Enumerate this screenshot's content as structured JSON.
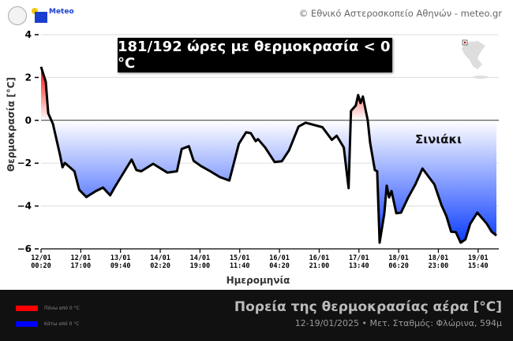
{
  "header": {
    "credit": "© Εθνικό Αστεροσκοπείο Αθηνών - meteo.gr",
    "logo_text": "Meteo"
  },
  "banner": "181/192 ώρες με θερμοκρασία < 0 °C",
  "station": "Σινιάκι",
  "footer": {
    "title": "Πορεία της θερμοκρασίας αέρα [°C]",
    "subtitle": "12-19/01/2025 • Μετ. Σταθμός: Φλώρινα, 594μ",
    "legend": [
      {
        "label": "Πάνω από 0 °C",
        "color": "#ff0000"
      },
      {
        "label": "Κάτω από 0 °C",
        "color": "#0000ff"
      }
    ]
  },
  "chart_data": {
    "type": "area",
    "xlabel": "Ημερομηνία",
    "ylabel": "Θερμοκρασία [°C]",
    "ylim": [
      -6,
      4
    ],
    "yticks": [
      4,
      2,
      0,
      -2,
      -4,
      -6
    ],
    "xlim": [
      "2025-01-12T00:20",
      "2025-01-20T00:20"
    ],
    "xticks": [
      {
        "x": "2025-01-12T00:20",
        "label": [
          "12/01",
          "00:20"
        ]
      },
      {
        "x": "2025-01-12T17:00",
        "label": [
          "12/01",
          "17:00"
        ]
      },
      {
        "x": "2025-01-13T09:40",
        "label": [
          "13/01",
          "09:40"
        ]
      },
      {
        "x": "2025-01-14T02:20",
        "label": [
          "14/01",
          "02:20"
        ]
      },
      {
        "x": "2025-01-14T19:00",
        "label": [
          "14/01",
          "19:00"
        ]
      },
      {
        "x": "2025-01-15T11:40",
        "label": [
          "15/01",
          "11:40"
        ]
      },
      {
        "x": "2025-01-16T04:20",
        "label": [
          "16/01",
          "04:20"
        ]
      },
      {
        "x": "2025-01-16T21:00",
        "label": [
          "16/01",
          "21:00"
        ]
      },
      {
        "x": "2025-01-17T13:40",
        "label": [
          "17/01",
          "13:40"
        ]
      },
      {
        "x": "2025-01-18T06:20",
        "label": [
          "18/01",
          "06:20"
        ]
      },
      {
        "x": "2025-01-18T23:00",
        "label": [
          "18/01",
          "23:00"
        ]
      },
      {
        "x": "2025-01-19T15:40",
        "label": [
          "19/01",
          "15:40"
        ]
      }
    ],
    "grid": true,
    "colors": {
      "above": "#ff0000",
      "below": "#0033ff",
      "line": "#000000"
    },
    "series": [
      {
        "points": [
          [
            "2025-01-12T00:20",
            2.5
          ],
          [
            "2025-01-12T02:20",
            1.8
          ],
          [
            "2025-01-12T03:20",
            0.33
          ],
          [
            "2025-01-12T05:20",
            -0.17
          ],
          [
            "2025-01-12T08:20",
            -1.64
          ],
          [
            "2025-01-12T09:20",
            -2.19
          ],
          [
            "2025-01-12T10:20",
            -1.99
          ],
          [
            "2025-01-12T14:20",
            -2.38
          ],
          [
            "2025-01-12T16:20",
            -3.24
          ],
          [
            "2025-01-12T19:20",
            -3.58
          ],
          [
            "2025-01-12T23:20",
            -3.3
          ],
          [
            "2025-01-13T02:20",
            -3.14
          ],
          [
            "2025-01-13T05:20",
            -3.5
          ],
          [
            "2025-01-13T07:20",
            -3.11
          ],
          [
            "2025-01-13T12:20",
            -2.19
          ],
          [
            "2025-01-13T14:20",
            -1.83
          ],
          [
            "2025-01-13T16:20",
            -2.32
          ],
          [
            "2025-01-13T18:20",
            -2.38
          ],
          [
            "2025-01-13T23:20",
            -2.03
          ],
          [
            "2025-01-14T05:20",
            -2.44
          ],
          [
            "2025-01-14T09:20",
            -2.38
          ],
          [
            "2025-01-14T11:20",
            -1.34
          ],
          [
            "2025-01-14T14:20",
            -1.21
          ],
          [
            "2025-01-14T16:20",
            -1.89
          ],
          [
            "2025-01-14T19:20",
            -2.13
          ],
          [
            "2025-01-14T23:20",
            -2.38
          ],
          [
            "2025-01-15T03:20",
            -2.65
          ],
          [
            "2025-01-15T07:20",
            -2.81
          ],
          [
            "2025-01-15T11:20",
            -1.09
          ],
          [
            "2025-01-15T14:20",
            -0.56
          ],
          [
            "2025-01-15T16:20",
            -0.6
          ],
          [
            "2025-01-15T18:20",
            -0.97
          ],
          [
            "2025-01-15T19:20",
            -0.88
          ],
          [
            "2025-01-15T22:20",
            -1.27
          ],
          [
            "2025-01-16T02:20",
            -1.95
          ],
          [
            "2025-01-16T05:20",
            -1.91
          ],
          [
            "2025-01-16T08:20",
            -1.4
          ],
          [
            "2025-01-16T12:20",
            -0.29
          ],
          [
            "2025-01-16T15:20",
            -0.11
          ],
          [
            "2025-01-16T22:20",
            -0.32
          ],
          [
            "2025-01-17T02:20",
            -0.91
          ],
          [
            "2025-01-17T04:20",
            -0.72
          ],
          [
            "2025-01-17T07:20",
            -1.27
          ],
          [
            "2025-01-17T09:20",
            -3.17
          ],
          [
            "2025-01-17T10:20",
            0.44
          ],
          [
            "2025-01-17T12:20",
            0.69
          ],
          [
            "2025-01-17T13:20",
            1.18
          ],
          [
            "2025-01-17T14:20",
            0.81
          ],
          [
            "2025-01-17T15:20",
            1.11
          ],
          [
            "2025-01-17T17:20",
            0.01
          ],
          [
            "2025-01-17T18:20",
            -1.03
          ],
          [
            "2025-01-17T20:20",
            -2.32
          ],
          [
            "2025-01-17T21:20",
            -2.38
          ],
          [
            "2025-01-17T22:20",
            -5.71
          ],
          [
            "2025-01-18T00:20",
            -4.34
          ],
          [
            "2025-01-18T01:20",
            -3.05
          ],
          [
            "2025-01-18T02:20",
            -3.6
          ],
          [
            "2025-01-18T03:20",
            -3.3
          ],
          [
            "2025-01-18T05:20",
            -4.34
          ],
          [
            "2025-01-18T07:20",
            -4.31
          ],
          [
            "2025-01-18T10:20",
            -3.6
          ],
          [
            "2025-01-18T13:20",
            -2.99
          ],
          [
            "2025-01-18T16:20",
            -2.25
          ],
          [
            "2025-01-18T21:20",
            -2.99
          ],
          [
            "2025-01-19T00:20",
            -3.97
          ],
          [
            "2025-01-19T02:20",
            -4.46
          ],
          [
            "2025-01-19T04:20",
            -5.2
          ],
          [
            "2025-01-19T06:20",
            -5.22
          ],
          [
            "2025-01-19T08:20",
            -5.71
          ],
          [
            "2025-01-19T10:20",
            -5.56
          ],
          [
            "2025-01-19T12:20",
            -4.83
          ],
          [
            "2025-01-19T15:20",
            -4.31
          ],
          [
            "2025-01-19T19:20",
            -4.83
          ],
          [
            "2025-01-19T21:20",
            -5.2
          ],
          [
            "2025-01-19T23:20",
            -5.38
          ]
        ]
      }
    ]
  }
}
